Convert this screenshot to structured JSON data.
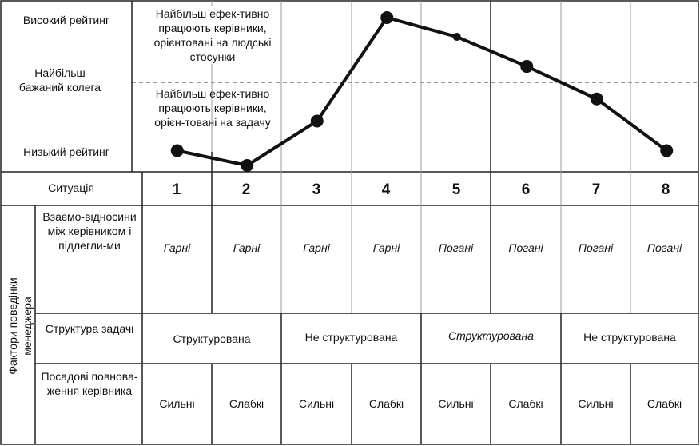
{
  "rating": {
    "high": "Високий рейтинг",
    "preferred": "Найбільш бажаний колега",
    "low": "Низький рейтинг"
  },
  "notes": {
    "relations": "Найбільш ефек-тивно працюють керівники, орієнтовані на людські стосунки",
    "task": "Найбільш ефек-тивно працюють керівники, орієн-товані на задачу"
  },
  "situation_label": "Ситуація",
  "situations": [
    "1",
    "2",
    "3",
    "4",
    "5",
    "6",
    "7",
    "8"
  ],
  "factors_label": "Фактори поведінки менеджера",
  "relations": {
    "label": "Взаємо-відносини між керівником і підлегли-ми",
    "values": [
      "Гарні",
      "Гарні",
      "Гарні",
      "Гарні",
      "Погані",
      "Погані",
      "Погані",
      "Погані"
    ]
  },
  "structure": {
    "label": "Структура задачі",
    "values": [
      "Структурована",
      "Не структурована",
      "Структурована",
      "Не структурована"
    ]
  },
  "power": {
    "label": "Посадові повнова-ження керівника",
    "values": [
      "Сильні",
      "Слабкі",
      "Сильні",
      "Слабкі",
      "Сильні",
      "Слабкі",
      "Сильні",
      "Слабкі"
    ]
  },
  "chart_data": {
    "type": "line",
    "x": [
      1,
      2,
      3,
      4,
      5,
      6,
      7,
      8
    ],
    "y": [
      0.1,
      0.0,
      0.3,
      1.0,
      0.87,
      0.67,
      0.45,
      0.1
    ],
    "ylabel_high": "Високий рейтинг",
    "ylabel_low": "Низький рейтинг"
  }
}
